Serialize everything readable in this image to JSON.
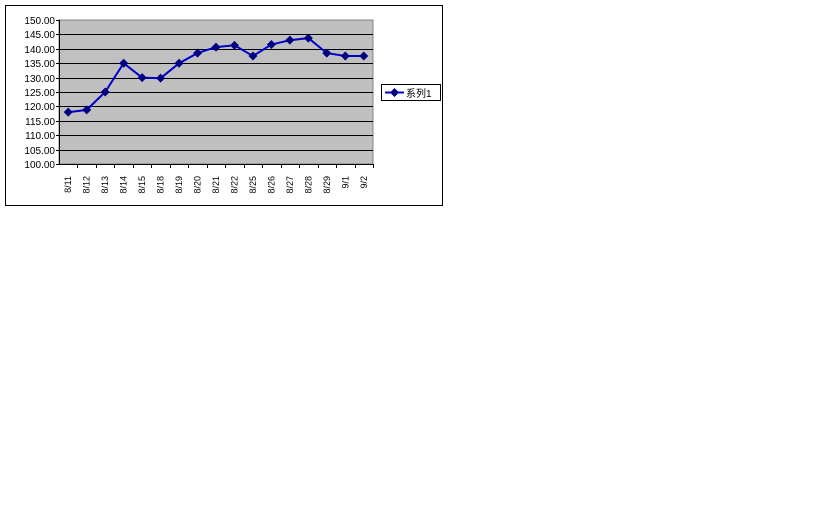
{
  "chart_data": {
    "type": "line",
    "title": "",
    "xlabel": "",
    "ylabel": "",
    "categories": [
      "8/11",
      "8/12",
      "8/13",
      "8/14",
      "8/15",
      "8/18",
      "8/19",
      "8/20",
      "8/21",
      "8/22",
      "8/25",
      "8/26",
      "8/27",
      "8/28",
      "8/29",
      "9/1",
      "9/2"
    ],
    "series": [
      {
        "name": "系列1",
        "values": [
          118.0,
          118.8,
          125.0,
          135.0,
          130.0,
          129.8,
          135.0,
          138.5,
          140.6,
          141.2,
          137.5,
          141.5,
          143.0,
          143.7,
          138.5,
          137.5,
          137.5
        ]
      }
    ],
    "ylim": [
      100,
      150
    ],
    "yticks": [
      "100.00",
      "105.00",
      "110.00",
      "115.00",
      "120.00",
      "125.00",
      "130.00",
      "135.00",
      "140.00",
      "145.00",
      "150.00"
    ],
    "grid": true,
    "legend": "right",
    "colors": {
      "series": "#0000cc",
      "marker": "#000080",
      "plot_bg": "#c0c0c0",
      "grid": "#000000"
    }
  }
}
